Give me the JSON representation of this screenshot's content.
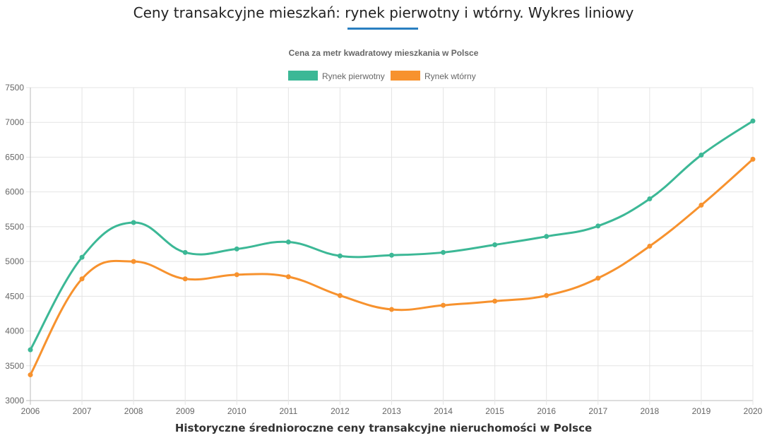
{
  "page": {
    "title": "Ceny transakcyjne mieszkań: rynek pierwotny i wtórny. Wykres liniowy"
  },
  "chart_data": {
    "type": "line",
    "title": "Cena za metr kwadratowy mieszkania w Polsce",
    "xlabel": "Historyczne średnioroczne ceny transakcyjne nieruchomości w Polsce",
    "ylabel": "",
    "categories": [
      "2006",
      "2007",
      "2008",
      "2009",
      "2010",
      "2011",
      "2012",
      "2013",
      "2014",
      "2015",
      "2016",
      "2017",
      "2018",
      "2019",
      "2020"
    ],
    "ylim": [
      3000,
      7500
    ],
    "yticks": [
      "3000",
      "3500",
      "4000",
      "4500",
      "5000",
      "5500",
      "6000",
      "6500",
      "7000",
      "7500"
    ],
    "grid": true,
    "legend_position": "top",
    "series": [
      {
        "name": "Rynek pierwotny",
        "color": "#3cb896",
        "values": [
          3730,
          5060,
          5560,
          5130,
          5180,
          5280,
          5080,
          5090,
          5130,
          5240,
          5360,
          5510,
          5900,
          6530,
          7020
        ]
      },
      {
        "name": "Rynek wtórny",
        "color": "#f7922e",
        "values": [
          3370,
          4750,
          5000,
          4750,
          4810,
          4780,
          4510,
          4310,
          4370,
          4430,
          4510,
          4760,
          5220,
          5810,
          6470
        ]
      }
    ]
  }
}
